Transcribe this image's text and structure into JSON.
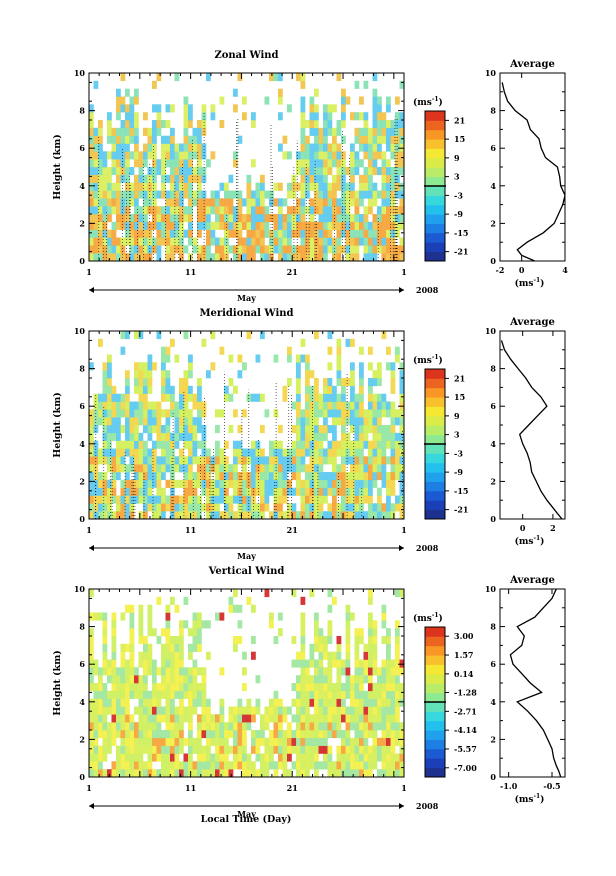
{
  "page": {
    "xlabel": "Local Time (Day)"
  },
  "chart_data": [
    {
      "type": "heatmap",
      "title": "Zonal Wind",
      "ylabel": "Height (km)",
      "ylim": [
        0,
        10
      ],
      "y_ticks": [
        "0",
        "2",
        "4",
        "6",
        "8",
        "10"
      ],
      "x_ticks": [
        "1",
        "11",
        "21",
        "1"
      ],
      "month_label": "May",
      "year_label": "2008",
      "colorbar": {
        "unit_base": "(ms",
        "unit_exp": "-1",
        "unit_close": ")",
        "tick_labels": [
          "21",
          "15",
          "9",
          "3",
          "-3",
          "-9",
          "-15",
          "-21"
        ],
        "vmin": -24,
        "vmax": 24
      },
      "profile": {
        "title": "Average",
        "xlim": [
          -2,
          4
        ],
        "x_ticks": [
          "-2",
          "0",
          "4"
        ],
        "x_tick_values": [
          -2,
          0,
          4
        ],
        "unit_base": "(ms",
        "unit_exp": "-1",
        "unit_close": ")",
        "height": [
          0.0,
          0.3,
          0.6,
          1.0,
          1.5,
          2.0,
          2.5,
          3.0,
          3.5,
          4.0,
          4.5,
          5.0,
          5.5,
          6.0,
          6.5,
          7.0,
          7.5,
          8.0,
          8.5,
          9.0,
          9.5
        ],
        "value": [
          1.2,
          0.0,
          -0.4,
          0.5,
          2.0,
          3.0,
          3.4,
          3.8,
          4.0,
          3.6,
          3.5,
          3.3,
          2.2,
          1.8,
          1.6,
          0.8,
          0.5,
          -0.6,
          -1.3,
          -1.6,
          -1.8
        ]
      }
    },
    {
      "type": "heatmap",
      "title": "Meridional Wind",
      "ylabel": "Height (km)",
      "ylim": [
        0,
        10
      ],
      "y_ticks": [
        "0",
        "2",
        "4",
        "6",
        "8",
        "10"
      ],
      "x_ticks": [
        "1",
        "11",
        "21",
        "1"
      ],
      "month_label": "May",
      "year_label": "2008",
      "colorbar": {
        "unit_base": "(ms",
        "unit_exp": "-1",
        "unit_close": ")",
        "tick_labels": [
          "21",
          "15",
          "9",
          "3",
          "-3",
          "-9",
          "-15",
          "-21"
        ],
        "vmin": -24,
        "vmax": 24
      },
      "profile": {
        "title": "Average",
        "xlim": [
          -1.5,
          2.8
        ],
        "x_ticks": [
          "0",
          "2"
        ],
        "x_tick_values": [
          0,
          2
        ],
        "unit_base": "(ms",
        "unit_exp": "-1",
        "unit_close": ")",
        "height": [
          0.0,
          0.3,
          0.6,
          1.0,
          1.5,
          2.0,
          2.5,
          3.0,
          3.5,
          4.0,
          4.5,
          5.0,
          5.5,
          6.0,
          6.5,
          7.0,
          7.5,
          8.0,
          8.5,
          9.0,
          9.5
        ],
        "value": [
          2.6,
          2.3,
          2.0,
          1.6,
          1.2,
          0.9,
          0.6,
          0.5,
          0.3,
          0.0,
          -0.2,
          0.4,
          1.0,
          1.6,
          1.2,
          0.6,
          0.2,
          -0.3,
          -0.8,
          -1.2,
          -1.4
        ]
      }
    },
    {
      "type": "heatmap",
      "title": "Vertical Wind",
      "ylabel": "Height (km)",
      "ylim": [
        0,
        10
      ],
      "y_ticks": [
        "0",
        "2",
        "4",
        "6",
        "8",
        "10"
      ],
      "x_ticks": [
        "1",
        "11",
        "21",
        "1"
      ],
      "month_label": "May",
      "year_label": "2008",
      "colorbar": {
        "unit_base": "(ms",
        "unit_exp": "-1",
        "unit_close": ")",
        "tick_labels": [
          "3.00",
          "1.57",
          "0.14",
          "-1.28",
          "-2.71",
          "-4.14",
          "-5.57",
          "-7.00"
        ],
        "vmin": -7.7,
        "vmax": 3.7
      },
      "profile": {
        "title": "Average",
        "xlim": [
          -1.1,
          -0.35
        ],
        "x_ticks": [
          "-1.0",
          "-0.5"
        ],
        "x_tick_values": [
          -1.0,
          -0.5
        ],
        "unit_base": "(ms",
        "unit_exp": "-1",
        "unit_close": ")",
        "height": [
          0.0,
          0.3,
          0.6,
          1.0,
          1.5,
          2.0,
          2.5,
          3.0,
          3.5,
          4.0,
          4.5,
          5.0,
          5.5,
          6.0,
          6.5,
          7.0,
          7.5,
          8.0,
          8.5,
          9.0,
          9.5,
          10.0
        ],
        "value": [
          -0.4,
          -0.42,
          -0.45,
          -0.48,
          -0.5,
          -0.55,
          -0.6,
          -0.68,
          -0.78,
          -0.9,
          -0.62,
          -0.75,
          -0.85,
          -0.95,
          -0.98,
          -0.85,
          -0.82,
          -0.9,
          -0.7,
          -0.6,
          -0.5,
          -0.45
        ]
      }
    }
  ]
}
